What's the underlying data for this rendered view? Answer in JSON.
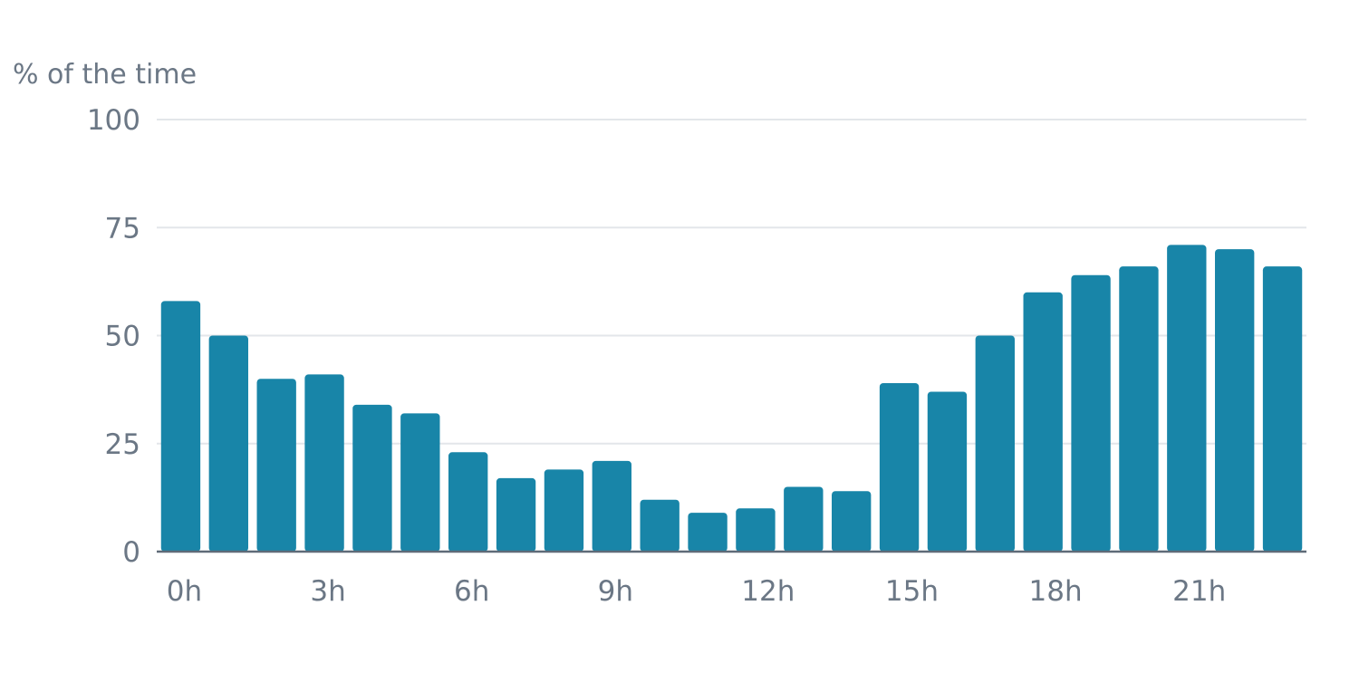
{
  "chart_data": {
    "type": "bar",
    "ylabel": "% of the time",
    "xlabel": "",
    "ylim": [
      0,
      100
    ],
    "y_ticks": [
      "0",
      "25",
      "50",
      "75",
      "100"
    ],
    "y_tick_values": [
      0,
      25,
      50,
      75,
      100
    ],
    "categories": [
      "0h",
      "1h",
      "2h",
      "3h",
      "4h",
      "5h",
      "6h",
      "7h",
      "8h",
      "9h",
      "10h",
      "11h",
      "12h",
      "13h",
      "14h",
      "15h",
      "16h",
      "17h",
      "18h",
      "19h",
      "20h",
      "21h",
      "22h",
      "23h"
    ],
    "x_tick_labels": [
      {
        "index": 0,
        "label": "0h"
      },
      {
        "index": 3,
        "label": "3h"
      },
      {
        "index": 6,
        "label": "6h"
      },
      {
        "index": 9,
        "label": "9h"
      },
      {
        "index": 12,
        "label": "12h"
      },
      {
        "index": 15,
        "label": "15h"
      },
      {
        "index": 18,
        "label": "18h"
      },
      {
        "index": 21,
        "label": "21h"
      }
    ],
    "values": [
      58,
      50,
      40,
      41,
      34,
      32,
      23,
      17,
      19,
      21,
      12,
      9,
      10,
      15,
      14,
      39,
      37,
      50,
      60,
      64,
      66,
      71,
      70,
      66
    ],
    "grid": true,
    "bar_color": "#1885a8",
    "grid_color": "#e3e6ea",
    "text_color": "#6b7785"
  }
}
